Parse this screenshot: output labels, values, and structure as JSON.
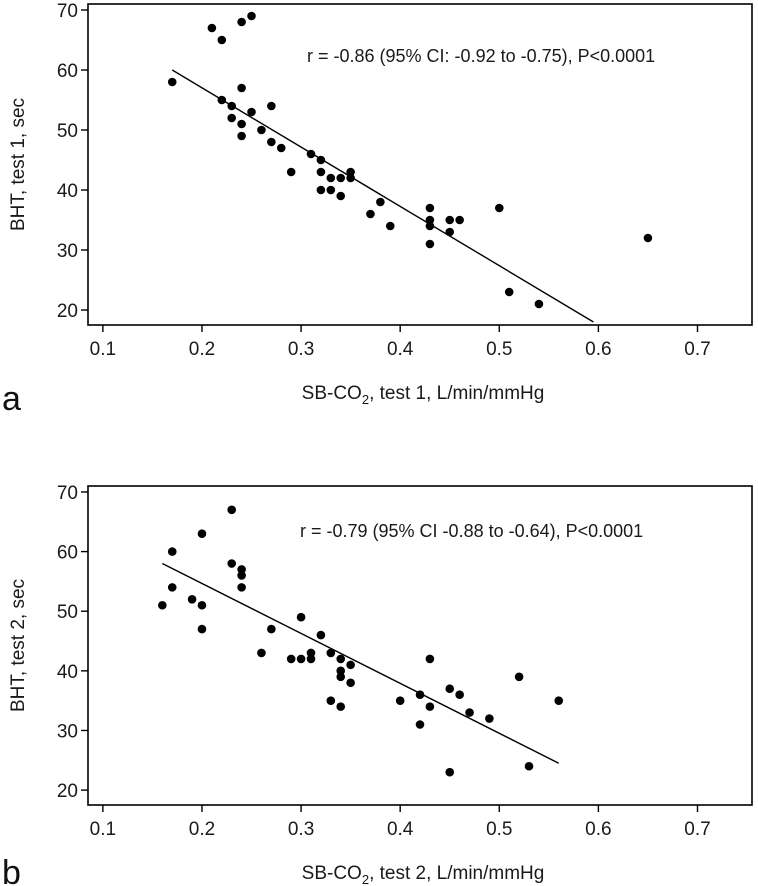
{
  "chart_data": [
    {
      "panel": "a",
      "type": "scatter",
      "xlabel_prefix": "SB-CO",
      "xlabel_sub": "2",
      "xlabel_suffix": ", test 1, L/min/mmHg",
      "ylabel": "BHT, test 1, sec",
      "xlim": [
        0.085,
        0.755
      ],
      "ylim": [
        17.5,
        71
      ],
      "xticks": [
        0.1,
        0.2,
        0.3,
        0.4,
        0.5,
        0.6,
        0.7
      ],
      "xtick_labels": [
        "0.1",
        "0.2",
        "0.3",
        "0.4",
        "0.5",
        "0.6",
        "0.7"
      ],
      "yticks": [
        20,
        30,
        40,
        50,
        60,
        70
      ],
      "ytick_labels": [
        "20",
        "30",
        "40",
        "50",
        "60",
        "70"
      ],
      "annotation": "r = -0.86 (95% CI: -0.92 to -0.75), P<0.0001",
      "regression": {
        "x": [
          0.17,
          0.595
        ],
        "y": [
          60,
          18
        ]
      },
      "points": [
        [
          0.17,
          58
        ],
        [
          0.21,
          67
        ],
        [
          0.22,
          65
        ],
        [
          0.24,
          68
        ],
        [
          0.25,
          69
        ],
        [
          0.22,
          55
        ],
        [
          0.23,
          54
        ],
        [
          0.24,
          57
        ],
        [
          0.23,
          52
        ],
        [
          0.24,
          51
        ],
        [
          0.24,
          49
        ],
        [
          0.25,
          53
        ],
        [
          0.26,
          50
        ],
        [
          0.27,
          54
        ],
        [
          0.27,
          48
        ],
        [
          0.28,
          47
        ],
        [
          0.29,
          43
        ],
        [
          0.31,
          46
        ],
        [
          0.32,
          45
        ],
        [
          0.32,
          43
        ],
        [
          0.32,
          40
        ],
        [
          0.33,
          42
        ],
        [
          0.33,
          40
        ],
        [
          0.34,
          42
        ],
        [
          0.34,
          39
        ],
        [
          0.35,
          43
        ],
        [
          0.35,
          42
        ],
        [
          0.37,
          36
        ],
        [
          0.38,
          38
        ],
        [
          0.39,
          34
        ],
        [
          0.43,
          37
        ],
        [
          0.43,
          35
        ],
        [
          0.43,
          34
        ],
        [
          0.43,
          31
        ],
        [
          0.45,
          35
        ],
        [
          0.45,
          33
        ],
        [
          0.46,
          35
        ],
        [
          0.5,
          37
        ],
        [
          0.51,
          23
        ],
        [
          0.54,
          21
        ],
        [
          0.65,
          32
        ]
      ]
    },
    {
      "panel": "b",
      "type": "scatter",
      "xlabel_prefix": "SB-CO",
      "xlabel_sub": "2",
      "xlabel_suffix": ", test 2, L/min/mmHg",
      "ylabel": "BHT, test 2, sec",
      "xlim": [
        0.085,
        0.755
      ],
      "ylim": [
        17.5,
        71
      ],
      "xticks": [
        0.1,
        0.2,
        0.3,
        0.4,
        0.5,
        0.6,
        0.7
      ],
      "xtick_labels": [
        "0.1",
        "0.2",
        "0.3",
        "0.4",
        "0.5",
        "0.6",
        "0.7"
      ],
      "yticks": [
        20,
        30,
        40,
        50,
        60,
        70
      ],
      "ytick_labels": [
        "20",
        "30",
        "40",
        "50",
        "60",
        "70"
      ],
      "annotation": "r = -0.79 (95% CI -0.88 to -0.64), P<0.0001",
      "regression": {
        "x": [
          0.16,
          0.56
        ],
        "y": [
          58,
          24.5
        ]
      },
      "points": [
        [
          0.16,
          51
        ],
        [
          0.17,
          54
        ],
        [
          0.17,
          60
        ],
        [
          0.19,
          52
        ],
        [
          0.2,
          51
        ],
        [
          0.2,
          47
        ],
        [
          0.2,
          63
        ],
        [
          0.23,
          58
        ],
        [
          0.23,
          67
        ],
        [
          0.24,
          57
        ],
        [
          0.24,
          56
        ],
        [
          0.24,
          54
        ],
        [
          0.26,
          43
        ],
        [
          0.27,
          47
        ],
        [
          0.29,
          42
        ],
        [
          0.3,
          49
        ],
        [
          0.3,
          42
        ],
        [
          0.31,
          43
        ],
        [
          0.31,
          42
        ],
        [
          0.32,
          46
        ],
        [
          0.33,
          43
        ],
        [
          0.33,
          35
        ],
        [
          0.34,
          42
        ],
        [
          0.34,
          40
        ],
        [
          0.34,
          39
        ],
        [
          0.34,
          34
        ],
        [
          0.35,
          41
        ],
        [
          0.35,
          38
        ],
        [
          0.4,
          35
        ],
        [
          0.42,
          36
        ],
        [
          0.42,
          31
        ],
        [
          0.43,
          42
        ],
        [
          0.43,
          34
        ],
        [
          0.45,
          37
        ],
        [
          0.45,
          23
        ],
        [
          0.46,
          36
        ],
        [
          0.47,
          33
        ],
        [
          0.49,
          32
        ],
        [
          0.52,
          39
        ],
        [
          0.53,
          24
        ],
        [
          0.56,
          35
        ]
      ]
    }
  ]
}
